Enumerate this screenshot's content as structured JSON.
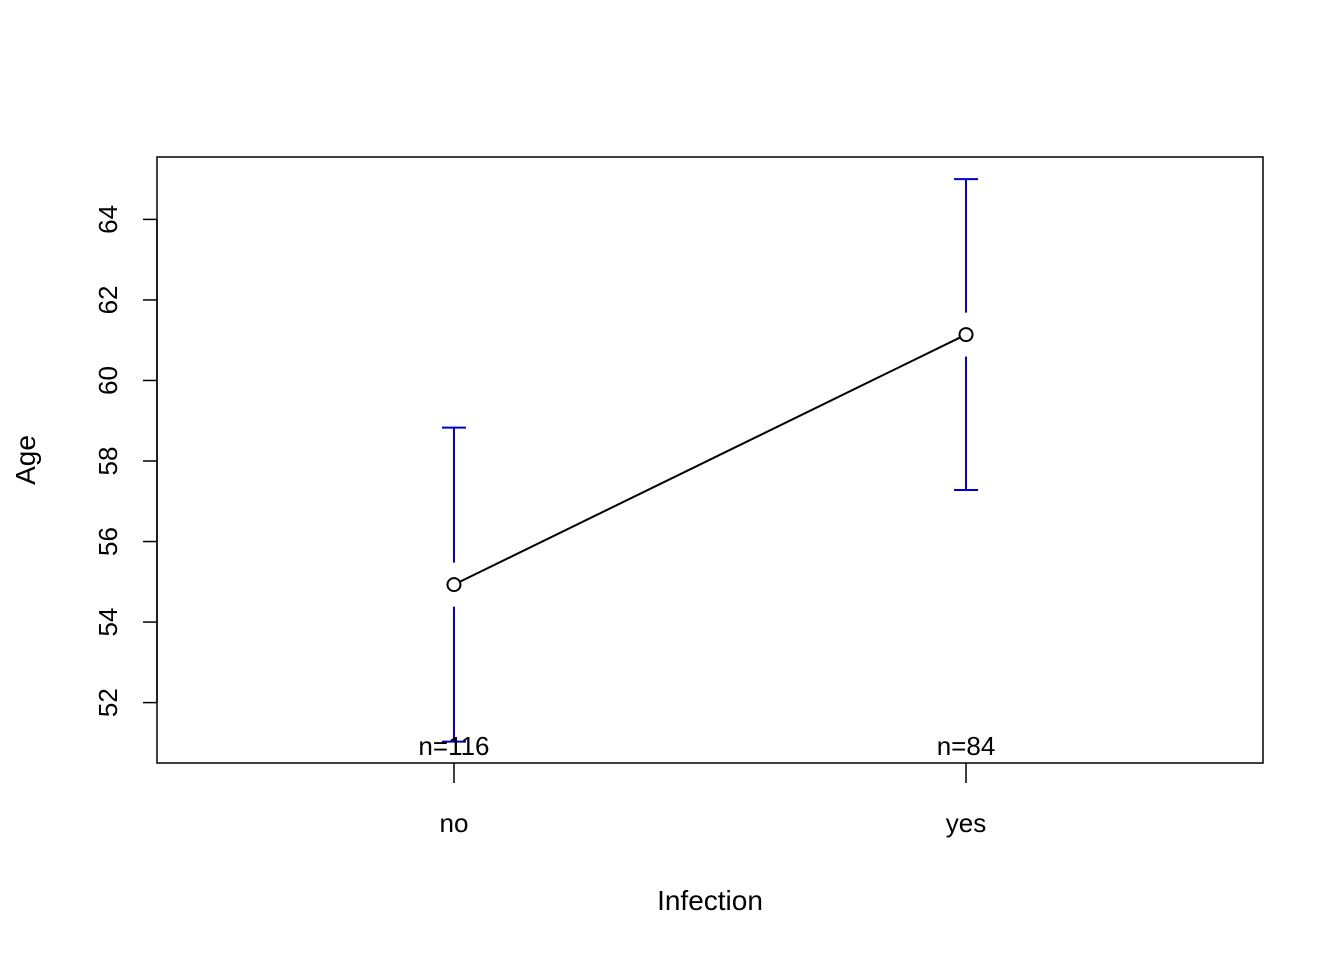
{
  "chart_data": {
    "type": "line",
    "title": "",
    "xlabel": "Infection",
    "ylabel": "Age",
    "categories": [
      "no",
      "yes"
    ],
    "means": [
      54.93,
      61.14
    ],
    "ci_lower": [
      51.03,
      57.28
    ],
    "ci_upper": [
      58.83,
      65.0
    ],
    "n_labels": [
      "n=116",
      "n=84"
    ],
    "ylim": [
      50.5,
      65.55
    ],
    "yticks": [
      52,
      54,
      56,
      58,
      60,
      62,
      64
    ],
    "ytick_labels": [
      "52",
      "54",
      "56",
      "58",
      "60",
      "62",
      "64"
    ],
    "grid": false,
    "legend": "none",
    "colors": {
      "line": "#000000",
      "error_bar": "#0000cd",
      "frame": "#000000"
    }
  }
}
